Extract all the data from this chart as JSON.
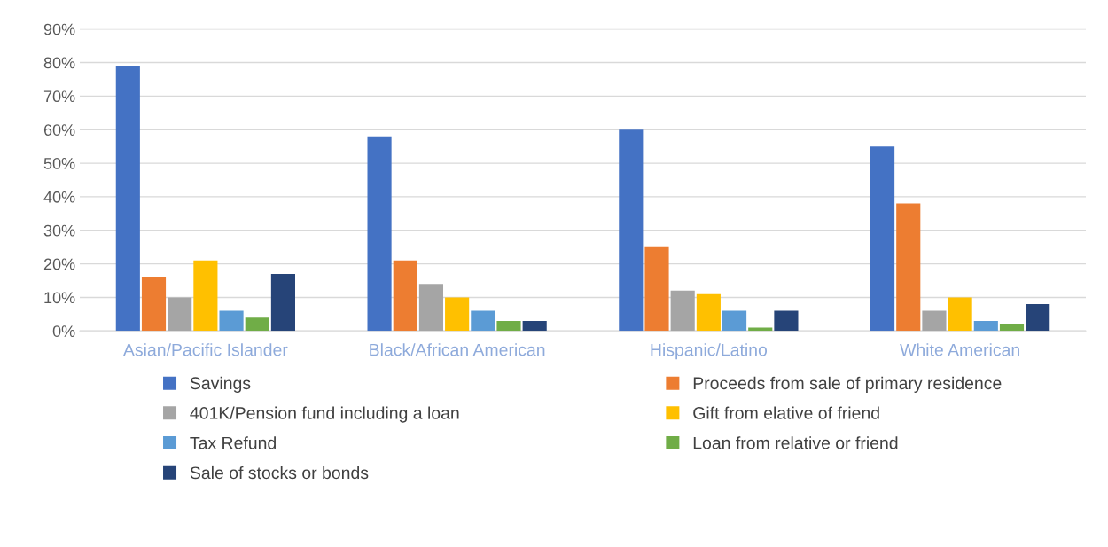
{
  "chart_data": {
    "type": "bar",
    "categories": [
      "Asian/Pacific Islander",
      "Black/African American",
      "Hispanic/Latino",
      "White American"
    ],
    "series": [
      {
        "name": "Savings",
        "color": "#4472c4",
        "values": [
          79,
          58,
          60,
          55
        ]
      },
      {
        "name": "Proceeds from sale of primary residence",
        "color": "#ed7d31",
        "values": [
          16,
          21,
          25,
          38
        ]
      },
      {
        "name": "401K/Pension fund including a loan",
        "color": "#a5a5a5",
        "values": [
          10,
          14,
          12,
          6
        ]
      },
      {
        "name": "Gift from elative of friend",
        "color": "#ffc000",
        "values": [
          21,
          10,
          11,
          10
        ]
      },
      {
        "name": "Tax Refund",
        "color": "#5b9bd5",
        "values": [
          6,
          6,
          6,
          3
        ]
      },
      {
        "name": "Loan from relative or friend",
        "color": "#70ad47",
        "values": [
          4,
          3,
          1,
          2
        ]
      },
      {
        "name": "Sale of stocks or bonds",
        "color": "#264478",
        "values": [
          17,
          3,
          6,
          8
        ]
      }
    ],
    "ylim": [
      0,
      90
    ],
    "yticks": [
      {
        "value": 0,
        "label": "0%"
      },
      {
        "value": 10,
        "label": "10%"
      },
      {
        "value": 20,
        "label": "20%"
      },
      {
        "value": 30,
        "label": "30%"
      },
      {
        "value": 40,
        "label": "40%"
      },
      {
        "value": 50,
        "label": "50%"
      },
      {
        "value": 60,
        "label": "60%"
      },
      {
        "value": 70,
        "label": "70%"
      },
      {
        "value": 80,
        "label": "80%"
      },
      {
        "value": 90,
        "label": "90%"
      }
    ],
    "grid": "y",
    "legend": "bottom"
  }
}
